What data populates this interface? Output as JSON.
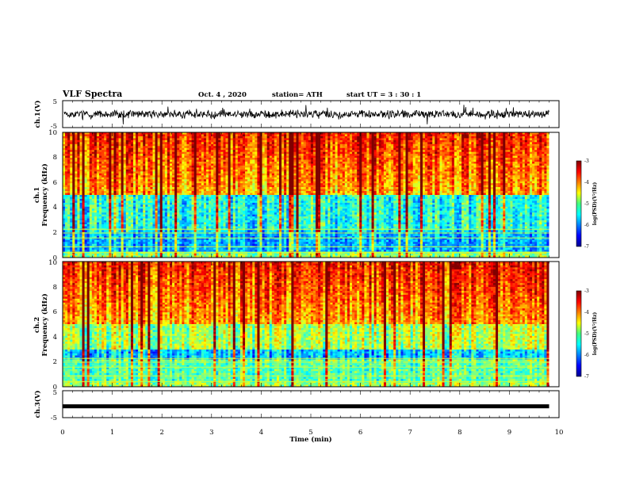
{
  "header": {
    "title": "VLF Spectra",
    "date": "Oct. 4 , 2020",
    "station": "station= ATH",
    "start": "start  UT =   3 : 30 : 1"
  },
  "chart_data": [
    {
      "type": "line",
      "name": "waveform-ch1",
      "ylabel": "ch.1(V)",
      "ylim": [
        -5,
        5
      ],
      "yticks": [
        "5",
        "-5"
      ],
      "xlim": [
        0,
        10
      ],
      "note_level": 0
    },
    {
      "type": "heatmap",
      "name": "spectrogram-ch1",
      "ylabel": "ch.1 Frequency (kHz)",
      "ylabel_top": "ch.1",
      "ylabel_main": "Frequency  (kHz)",
      "ylim": [
        0,
        10
      ],
      "yticks": [
        "0",
        "2",
        "4",
        "6",
        "8",
        "10"
      ],
      "xlim": [
        0,
        9.8
      ],
      "colorbar": {
        "label": "log(PSD)(V²/Hz)",
        "range": [
          -7,
          -3
        ],
        "ticks": [
          "-3",
          "-4",
          "-5",
          "-6",
          "-7"
        ]
      }
    },
    {
      "type": "heatmap",
      "name": "spectrogram-ch2",
      "ylabel": "ch.2 Frequency (kHz)",
      "ylabel_top": "ch.2",
      "ylabel_main": "Frequency  (kHz)",
      "ylim": [
        0,
        10
      ],
      "yticks": [
        "0",
        "2",
        "4",
        "6",
        "8",
        "10"
      ],
      "xlim": [
        0,
        9.8
      ],
      "colorbar": {
        "label": "log(PSD)(V²/Hz)",
        "range": [
          -7,
          -3
        ],
        "ticks": [
          "-3",
          "-4",
          "-5",
          "-6",
          "-7"
        ]
      }
    },
    {
      "type": "line",
      "name": "waveform-ch3",
      "ylabel": "ch.3(V)",
      "ylim": [
        -5,
        5
      ],
      "yticks": [
        "5",
        "-5"
      ],
      "xlim": [
        0,
        10
      ],
      "level": -0.8
    }
  ],
  "xaxis": {
    "label": "Time  (min)",
    "range": [
      0,
      10
    ],
    "ticks": [
      "0",
      "1",
      "2",
      "3",
      "4",
      "5",
      "6",
      "7",
      "8",
      "9",
      "10"
    ]
  },
  "colors": {
    "jet_low": "#00008f",
    "jet_high": "#800000"
  }
}
